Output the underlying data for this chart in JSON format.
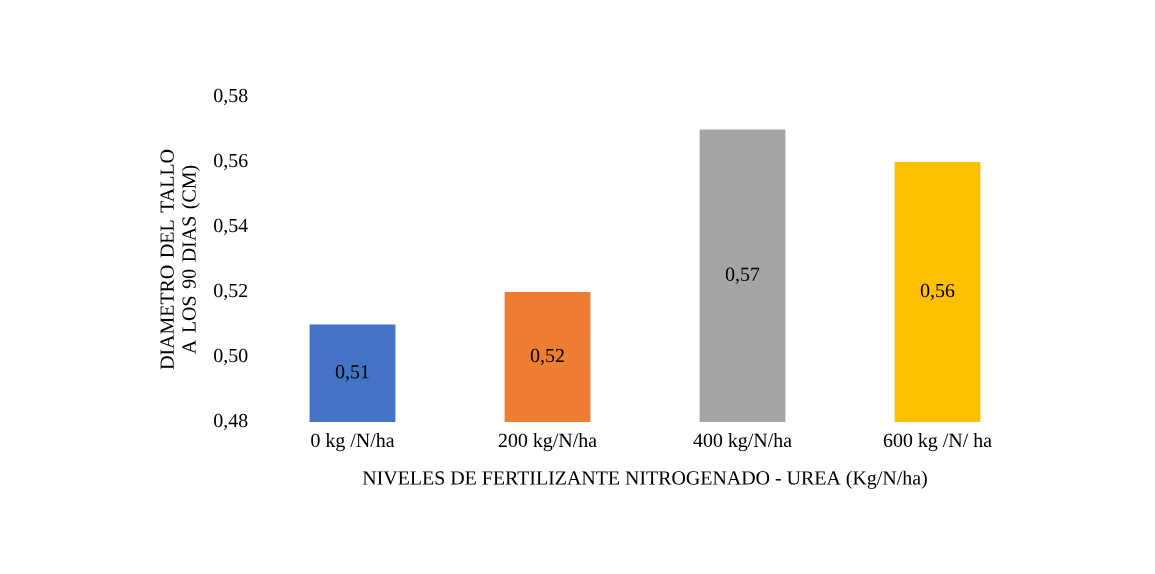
{
  "chart_data": {
    "type": "bar",
    "xlabel": "NIVELES DE FERTILIZANTE NITROGENADO - UREA  (Kg/N/ha)",
    "ylabel": "DIAMETRO DEL TALLO A LOS 90 DIAS (CM)",
    "categories": [
      "0 kg /N/ha",
      "200 kg/N/ha",
      "400 kg/N/ha",
      "600 kg /N/ ha"
    ],
    "values": [
      0.51,
      0.52,
      0.57,
      0.56
    ],
    "value_labels": [
      "0,51",
      "0,52",
      "0,57",
      "0,56"
    ],
    "colors": [
      "#4472c4",
      "#ed7d31",
      "#a5a5a5",
      "#ffc000"
    ],
    "ylim": [
      0.48,
      0.58
    ],
    "yticks": [
      {
        "value": 0.48,
        "label": "0,48"
      },
      {
        "value": 0.5,
        "label": "0,50"
      },
      {
        "value": 0.52,
        "label": "0,52"
      },
      {
        "value": 0.54,
        "label": "0,54"
      },
      {
        "value": 0.56,
        "label": "0,56"
      },
      {
        "value": 0.58,
        "label": "0,58"
      }
    ],
    "grid": false
  }
}
